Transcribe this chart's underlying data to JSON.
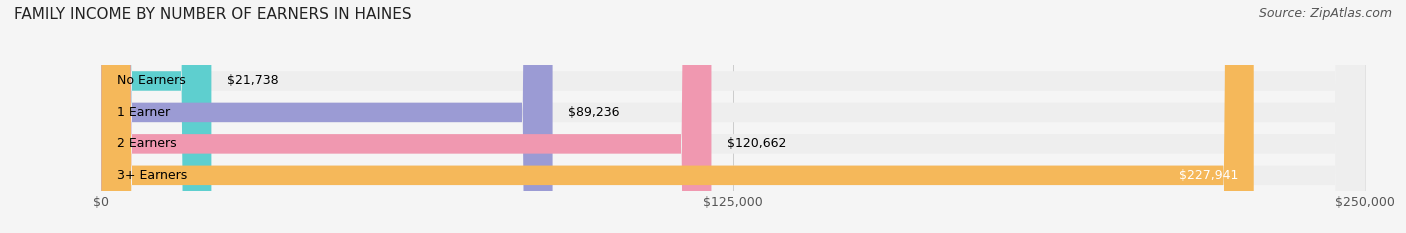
{
  "title": "FAMILY INCOME BY NUMBER OF EARNERS IN HAINES",
  "source": "Source: ZipAtlas.com",
  "categories": [
    "No Earners",
    "1 Earner",
    "2 Earners",
    "3+ Earners"
  ],
  "values": [
    21738,
    89236,
    120662,
    227941
  ],
  "max_value": 250000,
  "bar_colors": [
    "#5ecfcf",
    "#9b9bd4",
    "#f098b0",
    "#f5b85a"
  ],
  "bar_bg_color": "#eeeeee",
  "label_colors": [
    "#000000",
    "#000000",
    "#000000",
    "#ffffff"
  ],
  "value_labels": [
    "$21,738",
    "$89,236",
    "$120,662",
    "$227,941"
  ],
  "x_ticks": [
    0,
    125000,
    250000
  ],
  "x_tick_labels": [
    "$0",
    "$125,000",
    "$250,000"
  ],
  "title_fontsize": 11,
  "source_fontsize": 9,
  "label_fontsize": 9,
  "value_fontsize": 9,
  "tick_fontsize": 9,
  "bg_color": "#f5f5f5",
  "plot_bg_color": "#f5f5f5"
}
